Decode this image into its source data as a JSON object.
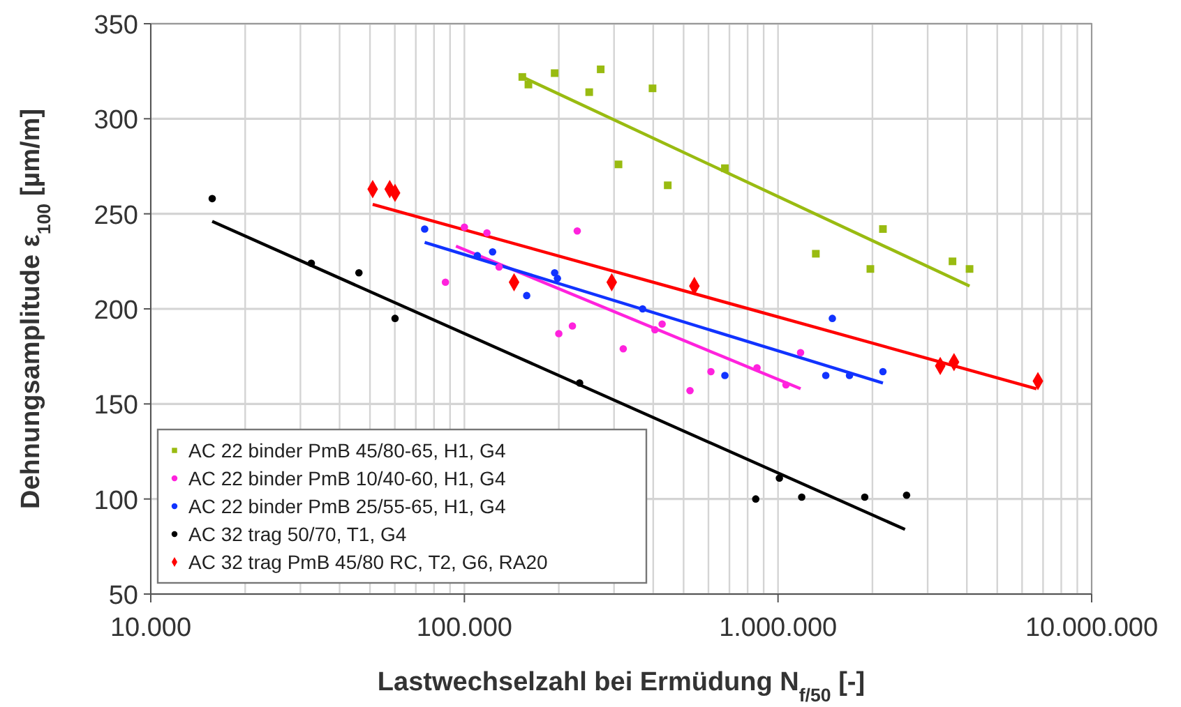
{
  "chart_data": {
    "type": "scatter",
    "xlabel": "Lastwechselzahl bei Ermüdung N$_{f/50}$ [-]",
    "ylabel": "Dehnungsamplitude ε$_{100}$ [µm/m]",
    "log": "x",
    "grid": true,
    "legend": "bottom left",
    "xlim": [
      10000,
      10000000
    ],
    "ylim": [
      50,
      350
    ],
    "xticks": [
      {
        "value": 10000,
        "label": "10.000"
      },
      {
        "value": 20000,
        "label": null
      },
      {
        "value": 30000,
        "label": null
      },
      {
        "value": 40000,
        "label": null
      },
      {
        "value": 50000,
        "label": null
      },
      {
        "value": 60000,
        "label": null
      },
      {
        "value": 70000,
        "label": null
      },
      {
        "value": 80000,
        "label": null
      },
      {
        "value": 90000,
        "label": null
      },
      {
        "value": 100000,
        "label": "100.000"
      },
      {
        "value": 200000,
        "label": null
      },
      {
        "value": 300000,
        "label": null
      },
      {
        "value": 400000,
        "label": null
      },
      {
        "value": 500000,
        "label": null
      },
      {
        "value": 600000,
        "label": null
      },
      {
        "value": 700000,
        "label": null
      },
      {
        "value": 800000,
        "label": null
      },
      {
        "value": 900000,
        "label": null
      },
      {
        "value": 1000000,
        "label": "1.000.000"
      },
      {
        "value": 2000000,
        "label": null
      },
      {
        "value": 3000000,
        "label": null
      },
      {
        "value": 4000000,
        "label": null
      },
      {
        "value": 5000000,
        "label": null
      },
      {
        "value": 6000000,
        "label": null
      },
      {
        "value": 7000000,
        "label": null
      },
      {
        "value": 8000000,
        "label": null
      },
      {
        "value": 9000000,
        "label": null
      },
      {
        "value": 10000000,
        "label": "10.000.000"
      }
    ],
    "yticks": [
      50,
      100,
      150,
      200,
      250,
      300,
      350
    ],
    "series": [
      {
        "name": "AC 22 binder PmB 45/80-65, H1, G4",
        "color": "#99bb11",
        "marker": "square",
        "x": [
          153000,
          160000,
          194000,
          272000,
          250000,
          398000,
          310000,
          445000,
          677000,
          1320000,
          1970000,
          2160000,
          3600000,
          4080000
        ],
        "values": [
          322,
          318,
          324,
          326,
          314,
          316,
          276,
          265,
          274,
          229,
          221,
          242,
          225,
          221
        ]
      },
      {
        "name": "AC 22 binder PmB 10/40-60, H1, G4",
        "color": "#ff22dd",
        "marker": "circle",
        "x": [
          100000,
          118000,
          229000,
          87000,
          129000,
          200000,
          221000,
          321000,
          427000,
          405000,
          524000,
          611000,
          857000,
          1060000,
          1180000
        ],
        "values": [
          243,
          240,
          241,
          214,
          222,
          187,
          191,
          179,
          192,
          189,
          157,
          167,
          169,
          160,
          177
        ]
      },
      {
        "name": "AC 22 binder PmB 25/55-65, H1, G4",
        "color": "#1133ff",
        "marker": "circle",
        "x": [
          74700,
          110000,
          123000,
          158000,
          194000,
          198000,
          370000,
          677000,
          1420000,
          1490000,
          1690000,
          2160000
        ],
        "values": [
          242,
          228,
          230,
          207,
          219,
          216,
          200,
          165,
          165,
          195,
          165,
          167
        ]
      },
      {
        "name": "AC 32 trag 50/70, T1, G4",
        "color": "#000000",
        "marker": "circle",
        "x": [
          15700,
          32500,
          46100,
          60100,
          233000,
          849000,
          1010000,
          1190000,
          1890000,
          2570000
        ],
        "values": [
          258,
          224,
          219,
          195,
          161,
          100,
          111,
          101,
          101,
          102
        ]
      },
      {
        "name": "AC 32 trag PmB 45/80 RC, T2, G6, RA20",
        "color": "#ff0000",
        "marker": "diamond",
        "x": [
          51000,
          57800,
          60100,
          144000,
          295000,
          541000,
          3290000,
          3640000,
          6740000
        ],
        "values": [
          263,
          263,
          261,
          214,
          214,
          212,
          170,
          172,
          162
        ]
      },
      {
        "type": "line",
        "color": "#99bb11",
        "x": [
          153000,
          4080000
        ],
        "values": [
          322,
          212
        ]
      },
      {
        "type": "line",
        "color": "#ff22dd",
        "x": [
          94000,
          1180000
        ],
        "values": [
          233,
          158
        ]
      },
      {
        "type": "line",
        "color": "#1133ff",
        "x": [
          74700,
          2160000
        ],
        "values": [
          235,
          161
        ]
      },
      {
        "type": "line",
        "color": "#000000",
        "x": [
          15700,
          2540000
        ],
        "values": [
          246,
          84
        ]
      },
      {
        "type": "line",
        "color": "#ff0000",
        "x": [
          51000,
          6670000
        ],
        "values": [
          255,
          158
        ]
      }
    ]
  }
}
